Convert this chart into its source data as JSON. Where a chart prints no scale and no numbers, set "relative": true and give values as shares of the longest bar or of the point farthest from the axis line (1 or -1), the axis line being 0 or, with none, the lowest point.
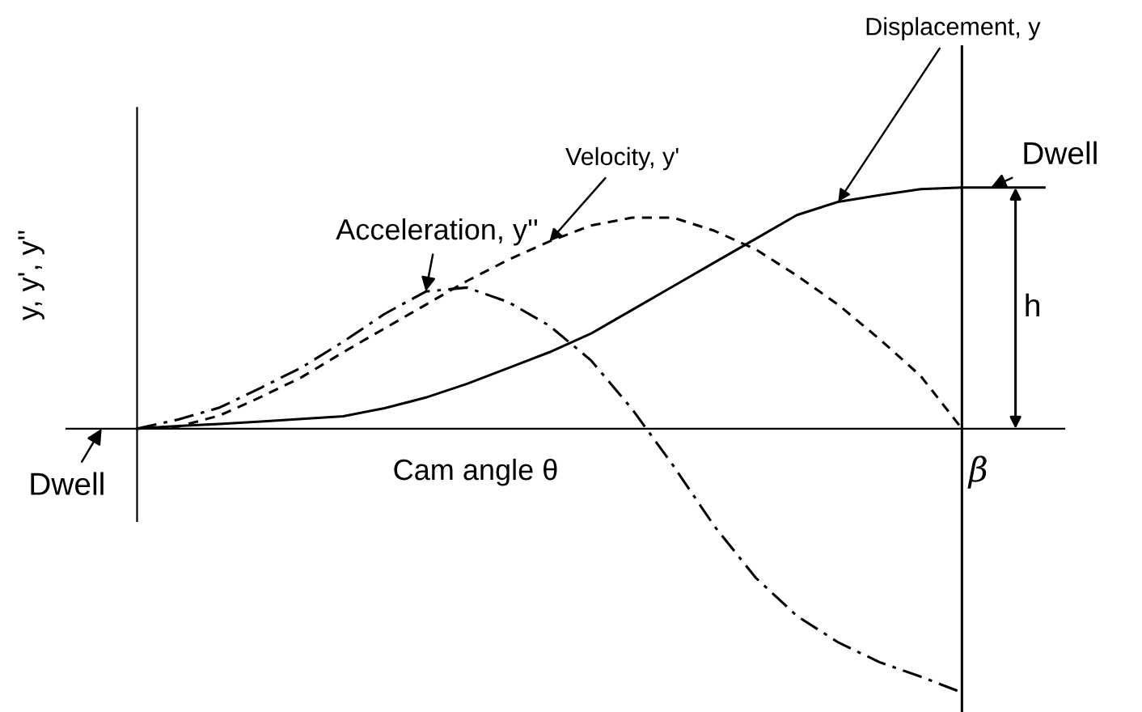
{
  "chart_data": {
    "type": "line",
    "relative": true,
    "xlabel": "Cam angle θ",
    "ylabel": "y, y', y''",
    "marker": "none",
    "categories": [
      null,
      null,
      null,
      null,
      null,
      null,
      null,
      null,
      null,
      null,
      null,
      null,
      null,
      null,
      null,
      null,
      null,
      null,
      null,
      null,
      null,
      null,
      null
    ],
    "series": [
      {
        "name": "Displacement, y",
        "color": "#000000",
        "line_style": "solid",
        "values": [
          0,
          0.01,
          0.018,
          0.027,
          0.037,
          0.047,
          0.078,
          0.118,
          0.17,
          0.23,
          0.29,
          0.36,
          0.45,
          0.54,
          0.63,
          0.72,
          0.81,
          0.86,
          0.885,
          0.908,
          0.914,
          0.914,
          0.914
        ]
      },
      {
        "name": "Velocity, y'",
        "color": "#000000",
        "line_style": "dashed",
        "values": [
          0,
          0.008,
          0.05,
          0.12,
          0.196,
          0.29,
          0.38,
          0.47,
          0.56,
          0.64,
          0.71,
          0.77,
          0.8,
          0.8,
          0.75,
          0.68,
          0.58,
          0.47,
          0.34,
          0.2,
          0,
          null,
          null
        ]
      },
      {
        "name": "Acceleration, y''",
        "color": "#000000",
        "line_style": "dashdot",
        "values": [
          0,
          0.035,
          0.08,
          0.155,
          0.233,
          0.33,
          0.435,
          0.52,
          0.535,
          0.48,
          0.39,
          0.26,
          0.075,
          -0.14,
          -0.37,
          -0.565,
          -0.71,
          -0.81,
          -0.885,
          -0.94,
          -1,
          null,
          null
        ]
      }
    ],
    "annotations": [
      "Dwell",
      "Dwell",
      "h",
      "β"
    ]
  }
}
